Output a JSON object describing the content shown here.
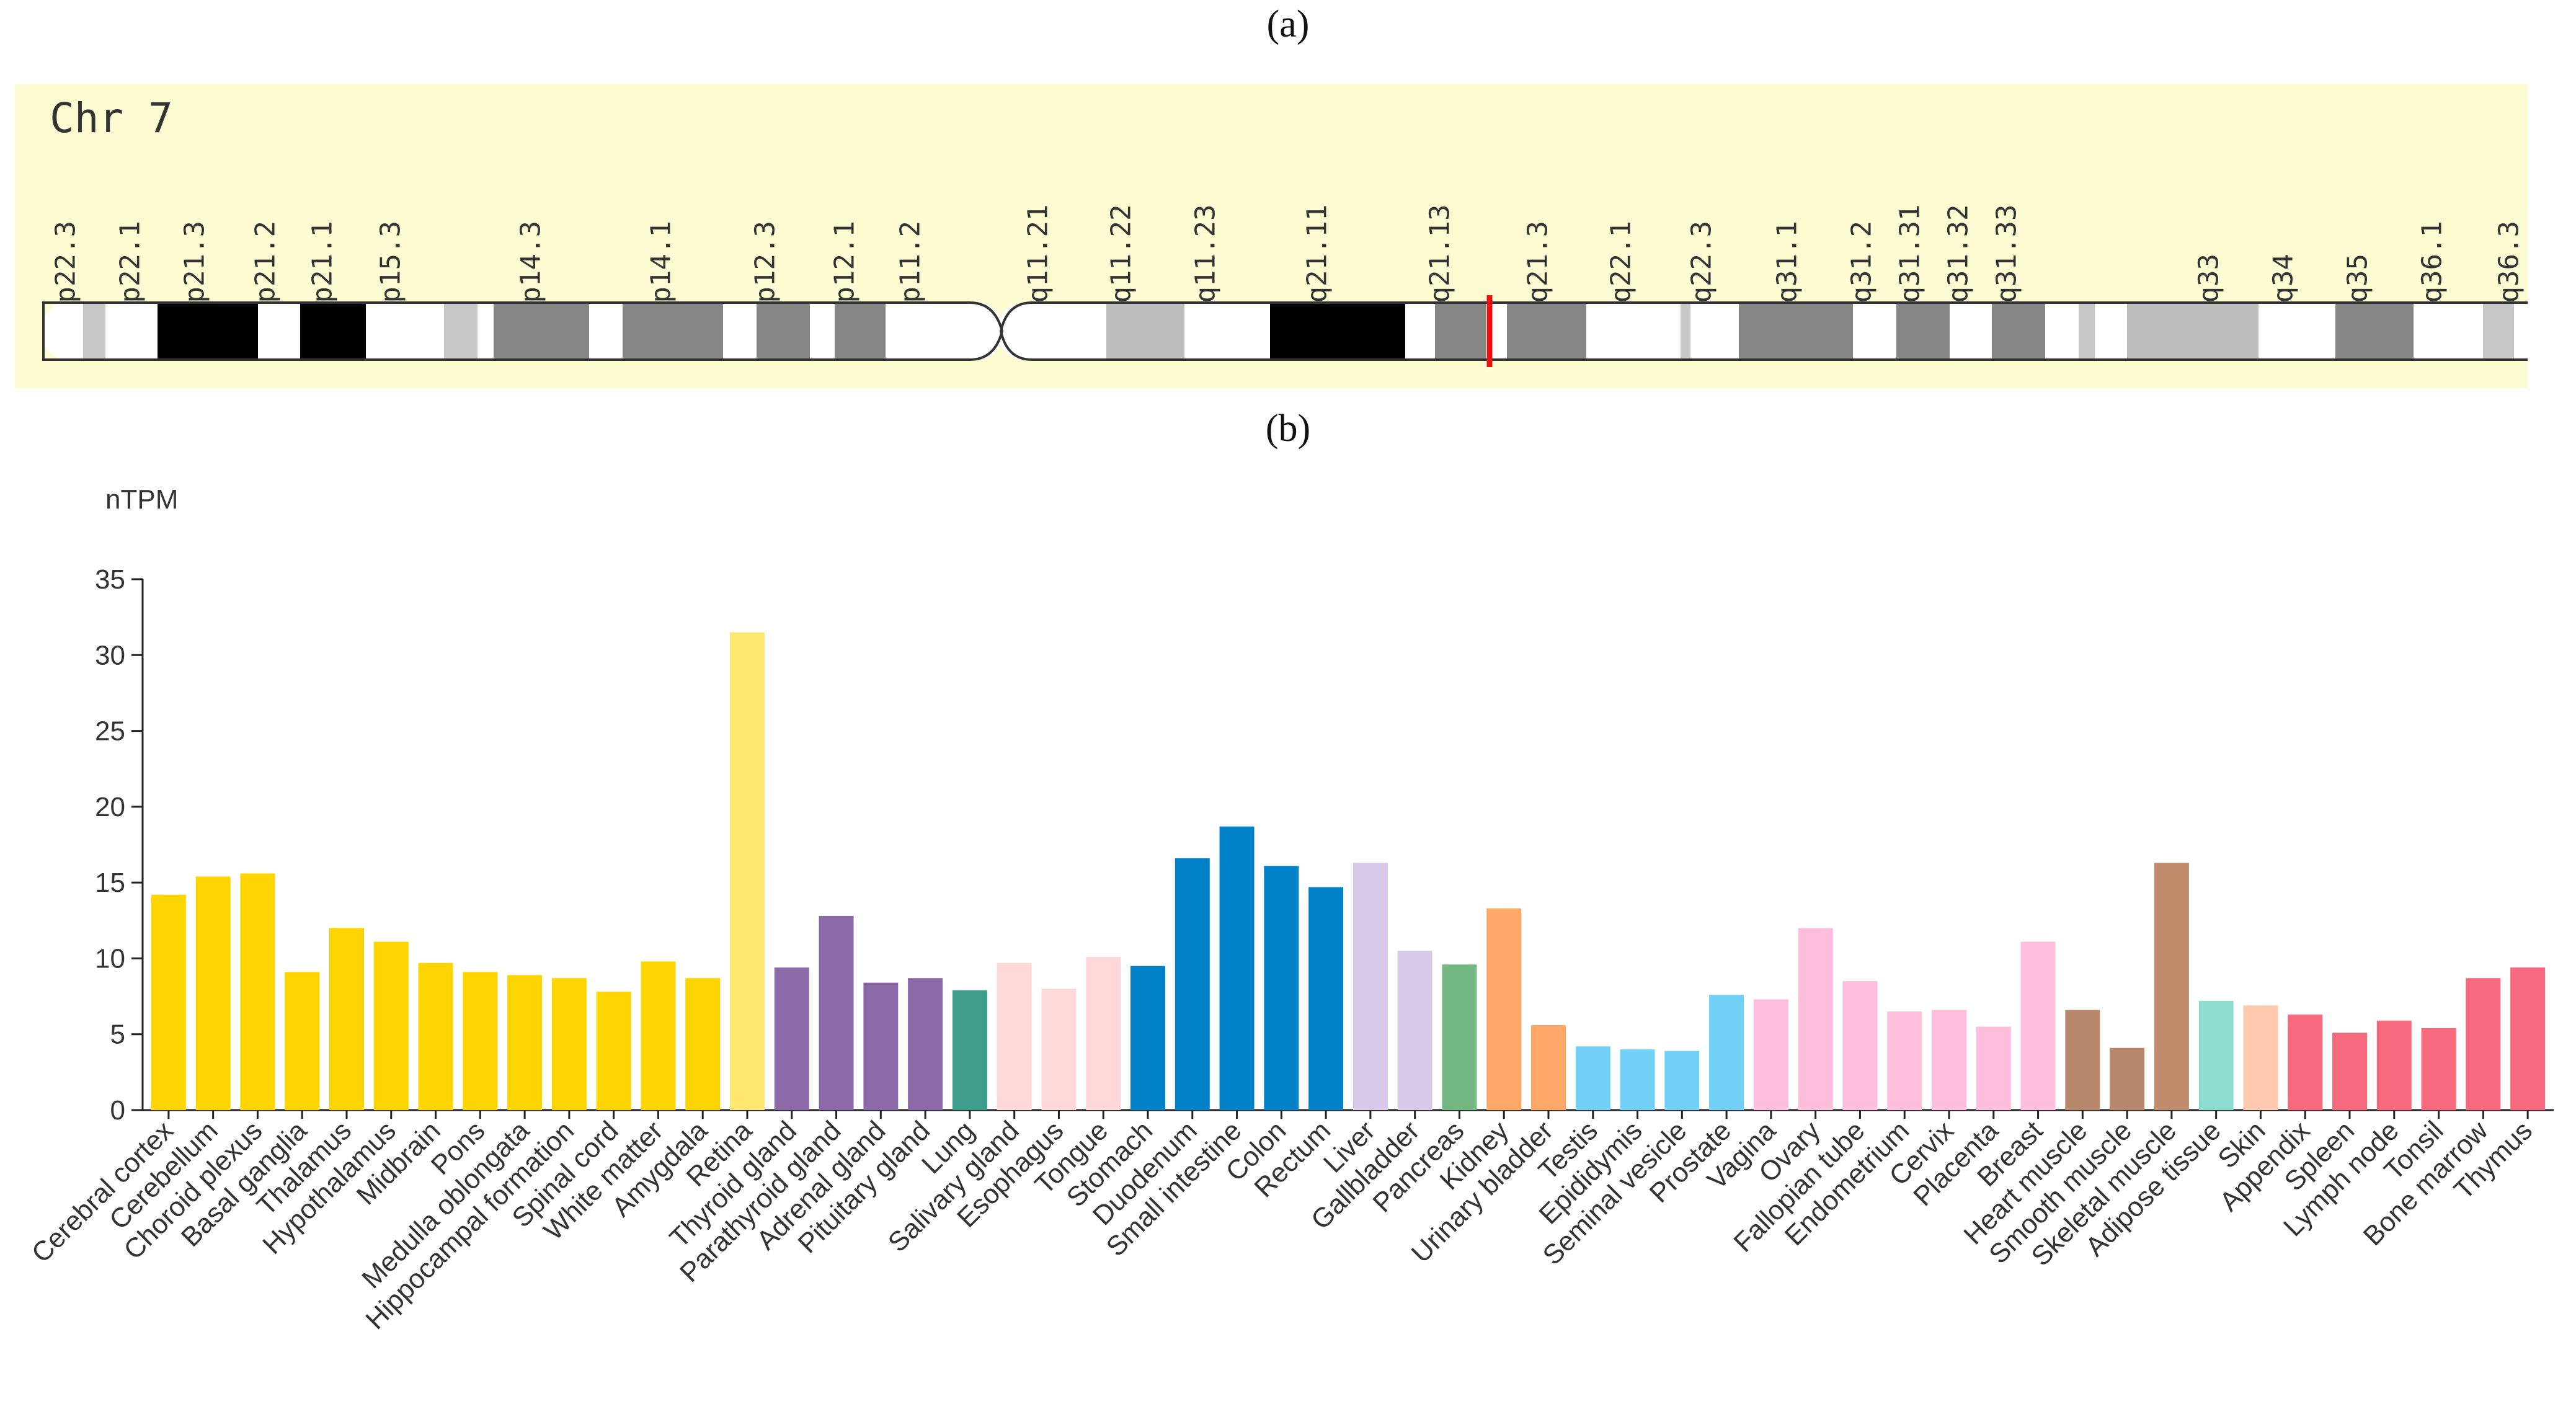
{
  "labels": {
    "panel_a": "(a)",
    "panel_b": "(b)"
  },
  "ideogram": {
    "title": "Chr 7",
    "band_labels": [
      "p22.3",
      "p22.1",
      "p21.3",
      "p21.2",
      "p21.1",
      "p15.3",
      "p14.3",
      "p14.1",
      "p12.3",
      "p12.1",
      "p11.2",
      "q11.21",
      "q11.22",
      "q11.23",
      "q21.11",
      "q21.13",
      "q21.3",
      "q22.1",
      "q22.3",
      "q31.1",
      "q31.2",
      "q31.31",
      "q31.32",
      "q31.33",
      "q33",
      "q34",
      "q35",
      "q36.1",
      "q36.3"
    ],
    "marker_color": "#ee1111"
  },
  "chart_data": {
    "type": "bar",
    "ylabel": "nTPM",
    "ylim": [
      0,
      35
    ],
    "yticks": [
      0,
      5,
      10,
      15,
      20,
      25,
      30,
      35
    ],
    "categories": [
      "Cerebral cortex",
      "Cerebellum",
      "Choroid plexus",
      "Basal ganglia",
      "Thalamus",
      "Hypothalamus",
      "Midbrain",
      "Pons",
      "Medulla oblongata",
      "Hippocampal formation",
      "Spinal cord",
      "White matter",
      "Amygdala",
      "Retina",
      "Thyroid gland",
      "Parathyroid gland",
      "Adrenal gland",
      "Pituitary gland",
      "Lung",
      "Salivary gland",
      "Esophagus",
      "Tongue",
      "Stomach",
      "Duodenum",
      "Small intestine",
      "Colon",
      "Rectum",
      "Liver",
      "Gallbladder",
      "Pancreas",
      "Kidney",
      "Urinary bladder",
      "Testis",
      "Epididymis",
      "Seminal vesicle",
      "Prostate",
      "Vagina",
      "Ovary",
      "Fallopian tube",
      "Endometrium",
      "Cervix",
      "Placenta",
      "Breast",
      "Heart muscle",
      "Smooth muscle",
      "Skeletal muscle",
      "Adipose tissue",
      "Skin",
      "Appendix",
      "Spleen",
      "Lymph node",
      "Tonsil",
      "Bone marrow",
      "Thymus"
    ],
    "values": [
      14.2,
      15.4,
      15.6,
      9.1,
      12.0,
      11.1,
      9.7,
      9.1,
      8.9,
      8.7,
      7.8,
      9.8,
      8.7,
      31.5,
      9.4,
      12.8,
      8.4,
      8.7,
      7.9,
      9.7,
      8.0,
      10.1,
      9.5,
      16.6,
      18.7,
      16.1,
      14.7,
      16.3,
      10.5,
      9.6,
      13.3,
      5.6,
      4.2,
      4.0,
      3.9,
      7.6,
      7.3,
      12.0,
      8.5,
      6.5,
      6.6,
      5.5,
      11.1,
      6.6,
      4.1,
      16.3,
      7.2,
      6.9,
      6.3,
      5.1,
      5.9,
      5.4,
      8.7,
      9.4
    ],
    "colors": [
      "#ffd500",
      "#ffd500",
      "#ffd500",
      "#ffd500",
      "#ffd500",
      "#ffd500",
      "#ffd500",
      "#ffd500",
      "#ffd500",
      "#ffd500",
      "#ffd500",
      "#ffd500",
      "#ffd500",
      "#ffe770",
      "#8c6aa7",
      "#8c6aa7",
      "#8c6aa7",
      "#8c6aa7",
      "#3d9d8c",
      "#ffd9d9",
      "#ffd9d9",
      "#ffd9d9",
      "#0081c8",
      "#0081c8",
      "#0081c8",
      "#0081c8",
      "#0081c8",
      "#d8c9e8",
      "#d8c9e8",
      "#74b883",
      "#ffa867",
      "#ffa867",
      "#73d1f7",
      "#73d1f7",
      "#73d1f7",
      "#73d1f7",
      "#ffbfdc",
      "#ffbfdc",
      "#ffbfdc",
      "#ffbfdc",
      "#ffbfdc",
      "#ffbfdc",
      "#ffbfdc",
      "#b9886a",
      "#b9886a",
      "#c08c6c",
      "#8ddccf",
      "#ffc9ae",
      "#f76a7e",
      "#f76a7e",
      "#f76a7e",
      "#f76a7e",
      "#f76a7e",
      "#f76a7e"
    ]
  }
}
